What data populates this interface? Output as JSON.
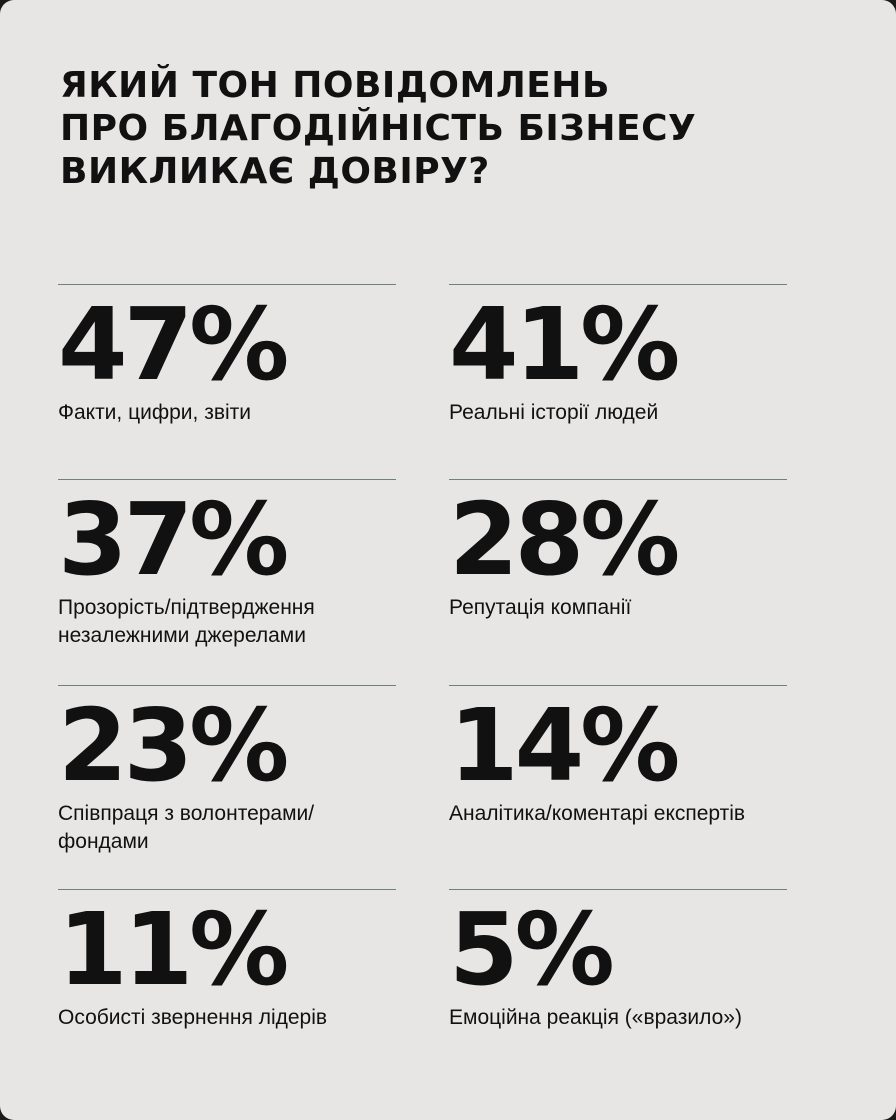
{
  "title": {
    "line1": "ЯКИЙ ТОН ПОВІДОМЛЕНЬ",
    "line2": "ПРО БЛАГОДІЙНІСТЬ БІЗНЕСУ",
    "line3": "ВИКЛИКАЄ ДОВІРУ?"
  },
  "stats": [
    {
      "value": "47%",
      "label": "Факти, цифри, звіти"
    },
    {
      "value": "41%",
      "label": "Реальні історії людей"
    },
    {
      "value": "37%",
      "label": "Прозорість/підтвердження незалежними джерелами"
    },
    {
      "value": "28%",
      "label": "Репутація компанії"
    },
    {
      "value": "23%",
      "label": "Співпраця з волонтерами/фондами"
    },
    {
      "value": "14%",
      "label": "Аналітика/коментарі експертів"
    },
    {
      "value": "11%",
      "label": "Особисті звернення лідерів"
    },
    {
      "value": "5%",
      "label": "Емоційна реакція («вразило»)"
    }
  ],
  "colors": {
    "background": "#e8e5e5",
    "text": "#111111",
    "divider": "#6d8279"
  }
}
